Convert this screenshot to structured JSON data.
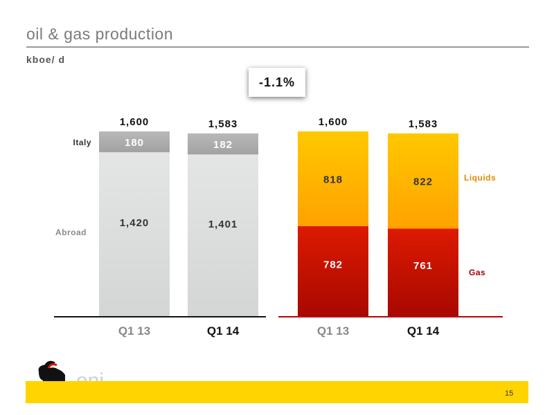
{
  "header": {
    "title": "oil & gas production",
    "unit": "kboe/ d",
    "change": "-1.1%"
  },
  "colors": {
    "italy": "#a8a8a8",
    "abroad": "#e2e3e3",
    "liquids": "#ffbf00",
    "gas": "#d81800",
    "liquids_label": "#e38a00",
    "gas_label": "#a00000",
    "brand_yellow": "#ffd400"
  },
  "chart_data": [
    {
      "type": "bar",
      "stacked": true,
      "categories": [
        "Q1 13",
        "Q1 14"
      ],
      "series": [
        {
          "name": "Abroad",
          "values": [
            1420,
            1401
          ]
        },
        {
          "name": "Italy",
          "values": [
            180,
            182
          ]
        }
      ],
      "totals": [
        "1,600",
        "1,583"
      ],
      "segment_labels": [
        [
          "1,420",
          "180"
        ],
        [
          "1,401",
          "182"
        ]
      ]
    },
    {
      "type": "bar",
      "stacked": true,
      "categories": [
        "Q1 13",
        "Q1 14"
      ],
      "series": [
        {
          "name": "Gas",
          "values": [
            782,
            761
          ]
        },
        {
          "name": "Liquids",
          "values": [
            818,
            822
          ]
        }
      ],
      "totals": [
        "1,600",
        "1,583"
      ],
      "segment_labels": [
        [
          "782",
          "818"
        ],
        [
          "761",
          "822"
        ]
      ]
    }
  ],
  "footer": {
    "brand": "eni",
    "page_number": "15"
  }
}
